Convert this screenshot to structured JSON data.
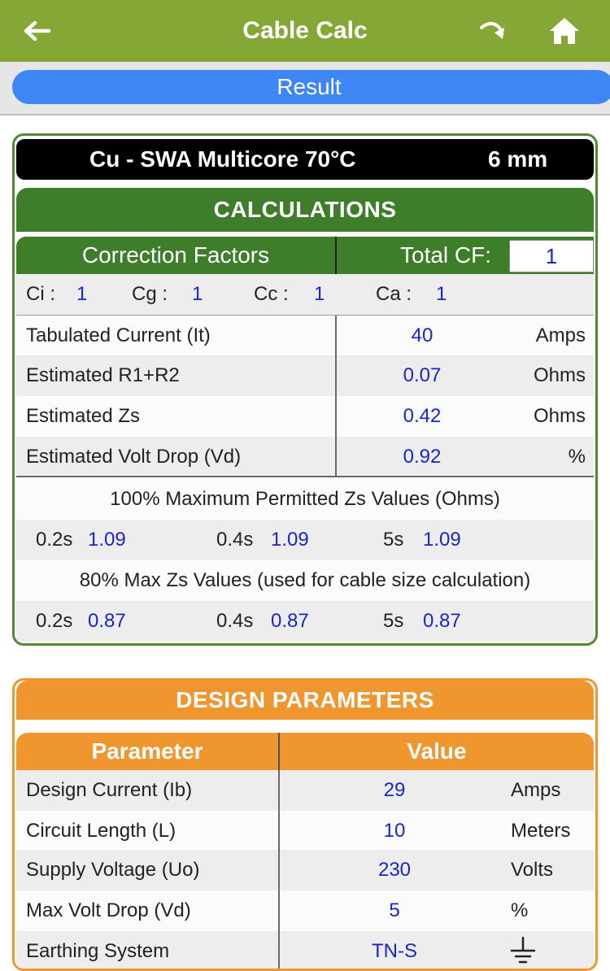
{
  "header": {
    "title": "Cable Calc",
    "back_icon": "arrow-left-icon",
    "redo_icon": "redo-arrow-icon",
    "home_icon": "home-icon"
  },
  "subbar": {
    "result_label": "Result"
  },
  "cable": {
    "name": "Cu - SWA Multicore 70°C",
    "size": "6 mm"
  },
  "calculations": {
    "title": "CALCULATIONS",
    "cf_header": "Correction Factors",
    "total_cf_label": "Total CF:",
    "total_cf_value": "1",
    "factors": [
      {
        "label": "Ci :",
        "value": "1"
      },
      {
        "label": "Cg :",
        "value": "1"
      },
      {
        "label": "Cc :",
        "value": "1"
      },
      {
        "label": "Ca :",
        "value": "1"
      }
    ],
    "rows": [
      {
        "label": "Tabulated Current  (It)",
        "value": "40",
        "unit": "Amps"
      },
      {
        "label": "Estimated R1+R2",
        "value": "0.07",
        "unit": "Ohms"
      },
      {
        "label": "Estimated Zs",
        "value": "0.42",
        "unit": "Ohms"
      },
      {
        "label": "Estimated Volt Drop  (Vd)",
        "value": "0.92",
        "unit": "%"
      }
    ],
    "zs100_title": "100% Maximum Permitted Zs Values (Ohms)",
    "zs100": [
      {
        "label": "0.2s",
        "value": "1.09"
      },
      {
        "label": "0.4s",
        "value": "1.09"
      },
      {
        "label": "5s",
        "value": "1.09"
      }
    ],
    "zs80_title": "80% Max Zs Values (used for cable size calculation)",
    "zs80": [
      {
        "label": "0.2s",
        "value": "0.87"
      },
      {
        "label": "0.4s",
        "value": "0.87"
      },
      {
        "label": "5s",
        "value": "0.87"
      }
    ]
  },
  "design": {
    "title": "DESIGN PARAMETERS",
    "col_param": "Parameter",
    "col_value": "Value",
    "rows": [
      {
        "label": "Design Current  (Ib)",
        "value": "29",
        "unit": "Amps"
      },
      {
        "label": "Circuit Length    (L)",
        "value": "10",
        "unit": "Meters"
      },
      {
        "label": "Supply Voltage  (Uo)",
        "value": "230",
        "unit": "Volts"
      },
      {
        "label": "Max Volt Drop   (Vd)",
        "value": "5",
        "unit": "%"
      },
      {
        "label": "Earthing System",
        "value": "TN-S",
        "unit_icon": "earth-ground-icon"
      }
    ]
  },
  "colors": {
    "topbar": "#84a736",
    "green": "#3e7d2a",
    "orange": "#f0962f",
    "blue_button": "#3f86f5",
    "value_blue": "#1a25c8"
  }
}
